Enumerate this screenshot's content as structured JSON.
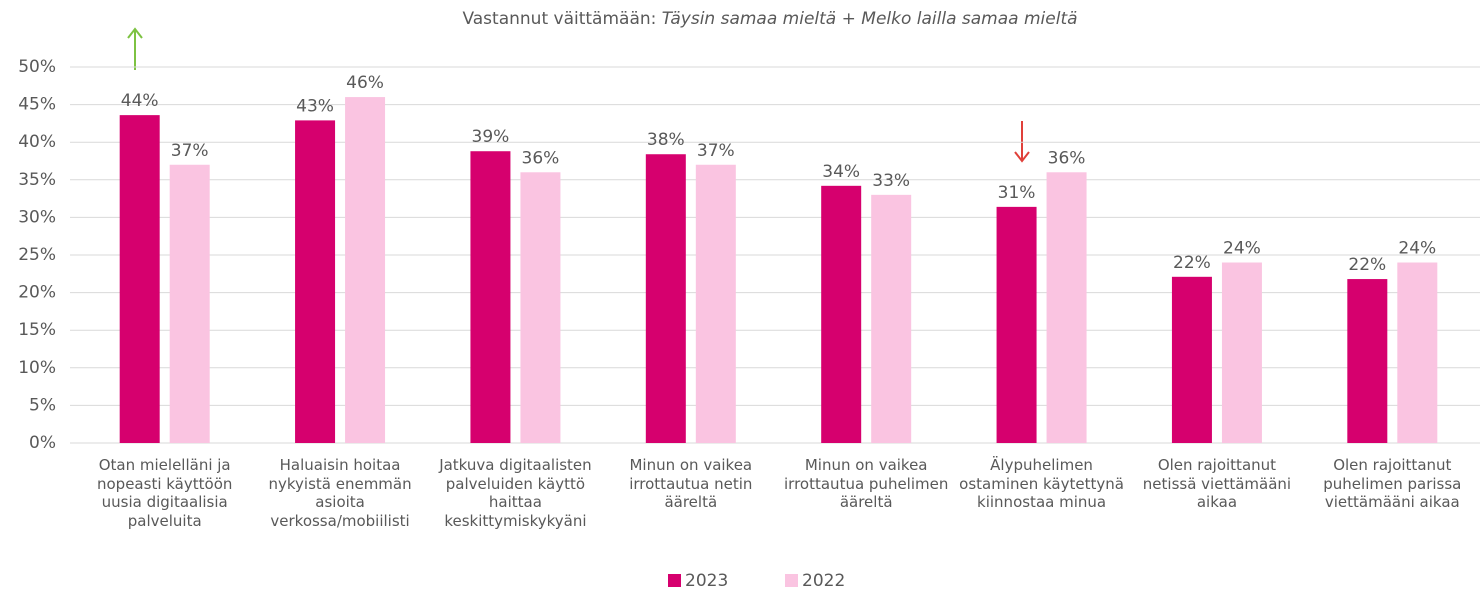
{
  "chart_data": {
    "type": "bar",
    "title": "Vastannut väittämään:",
    "title_emphasis": "Täysin samaa mieltä + Melko lailla samaa mieltä",
    "categories": [
      "Otan mielelläni ja nopeasti käyttöön uusia digitaalisia palveluita",
      "Haluaisin hoitaa nykyistä enemmän asioita verkossa/mobiilisti",
      "Jatkuva digitaalisten palveluiden käyttö haittaa keskittymiskykyäni",
      "Minun on vaikea irrottautua netin ääreltä",
      "Minun on vaikea irrottautua puhelimen ääreltä",
      "Älypuhelimen ostaminen käytettynä kiinnostaa minua",
      "Olen rajoittanut netissä viettämääni aikaa",
      "Olen rajoittanut puhelimen parissa viettämääni aikaa"
    ],
    "series": [
      {
        "name": "2023",
        "color": "#d6006e",
        "values": [
          43.6,
          42.9,
          38.8,
          38.4,
          34.2,
          31.4,
          22.1,
          21.8
        ],
        "value_labels": [
          "44%",
          "43%",
          "39%",
          "38%",
          "34%",
          "31%",
          "22%",
          "22%"
        ]
      },
      {
        "name": "2022",
        "color": "#fac4e1",
        "values": [
          37,
          46,
          36,
          37,
          33,
          36,
          24,
          24
        ],
        "value_labels": [
          "37%",
          "46%",
          "36%",
          "37%",
          "33%",
          "36%",
          "24%",
          "24%"
        ]
      }
    ],
    "ylim": [
      0,
      50
    ],
    "yticks": [
      {
        "value": 0,
        "label": "0%"
      },
      {
        "value": 5,
        "label": "5%"
      },
      {
        "value": 10,
        "label": "10%"
      },
      {
        "value": 15,
        "label": "15%"
      },
      {
        "value": 20,
        "label": "20%"
      },
      {
        "value": 25,
        "label": "25%"
      },
      {
        "value": 30,
        "label": "30%"
      },
      {
        "value": 35,
        "label": "35%"
      },
      {
        "value": 40,
        "label": "40%"
      },
      {
        "value": 45,
        "label": "45%"
      },
      {
        "value": 50,
        "label": "50%"
      }
    ],
    "grid": true,
    "legend": "bottom"
  }
}
